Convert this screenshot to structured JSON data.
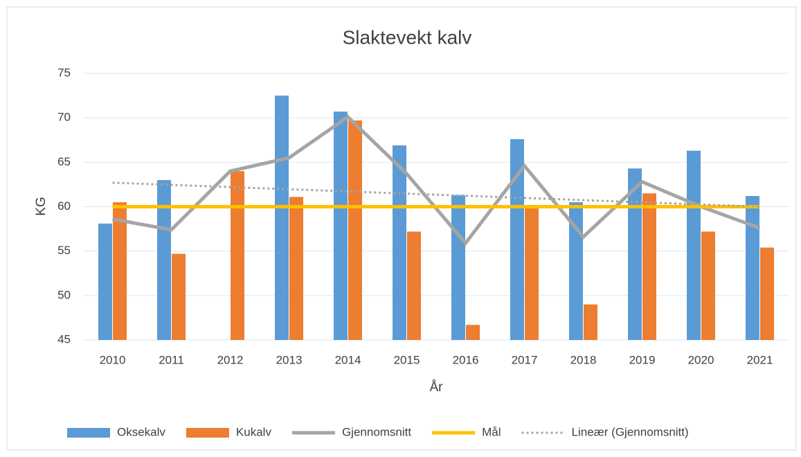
{
  "chart_data": {
    "type": "bar",
    "title": "Slaktevekt kalv",
    "x_label": "År",
    "y_label": "KG",
    "categories": [
      "2010",
      "2011",
      "2012",
      "2013",
      "2014",
      "2015",
      "2016",
      "2017",
      "2018",
      "2019",
      "2020",
      "2021"
    ],
    "series": [
      {
        "name": "Oksekalv",
        "type": "bar",
        "color": "#5b9bd5",
        "values": [
          58.1,
          63.0,
          null,
          72.5,
          70.7,
          66.9,
          61.3,
          67.6,
          60.5,
          64.3,
          66.3,
          61.2
        ]
      },
      {
        "name": "Kukalv",
        "type": "bar",
        "color": "#ed7d31",
        "values": [
          60.5,
          54.7,
          64.0,
          61.1,
          69.7,
          57.2,
          46.7,
          59.8,
          49.0,
          61.5,
          57.2,
          55.4
        ]
      },
      {
        "name": "Gjennomsnitt",
        "type": "line",
        "color": "#a5a5a5",
        "values": [
          58.6,
          57.4,
          64.0,
          65.5,
          70.1,
          63.7,
          55.9,
          64.6,
          56.6,
          62.8,
          60.0,
          57.6
        ]
      },
      {
        "name": "Mål",
        "type": "line",
        "color": "#ffc000",
        "values": [
          60,
          60,
          60,
          60,
          60,
          60,
          60,
          60,
          60,
          60,
          60,
          60
        ]
      },
      {
        "name": "Lineær (Gjennomsnitt)",
        "type": "line",
        "style": "dotted",
        "color": "#a5a5a5",
        "values": [
          62.7,
          62.45,
          62.21,
          61.96,
          61.72,
          61.47,
          61.23,
          60.98,
          60.74,
          60.49,
          60.25,
          60.0
        ]
      }
    ],
    "ylim": [
      45,
      75
    ],
    "yticks": [
      45,
      50,
      55,
      60,
      65,
      70,
      75
    ],
    "grid": true,
    "legend": "bottom"
  }
}
